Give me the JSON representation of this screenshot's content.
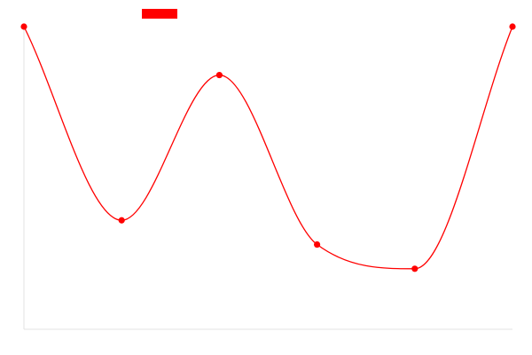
{
  "chart_data": {
    "type": "line",
    "title": "",
    "xlabel": "",
    "ylabel": "",
    "x": [
      0,
      1,
      2,
      3,
      4,
      5
    ],
    "ylim": [
      0,
      100
    ],
    "grid": false,
    "legend_position": "top-left",
    "series": [
      {
        "color": "#ff0000",
        "smooth": true,
        "show_points": true,
        "values": [
          100,
          36,
          84,
          28,
          20,
          100
        ]
      }
    ]
  }
}
